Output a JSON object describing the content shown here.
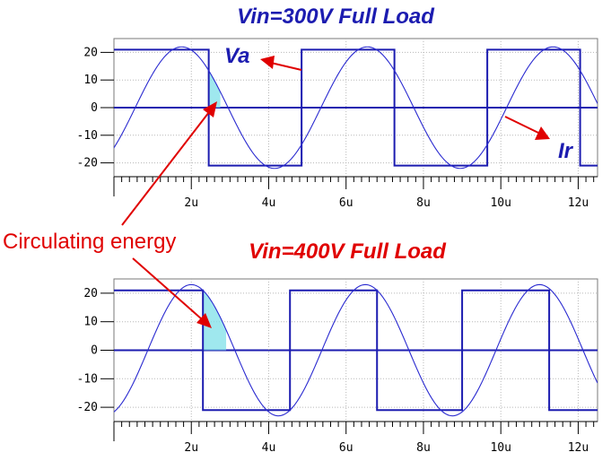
{
  "annotations": {
    "va_label": "Va",
    "ir_label": "Ir",
    "circulating_label": "Circulating energy"
  },
  "colors": {
    "waveform": "#1c1cb0",
    "sine": "#2a2ad0",
    "annotation": "#e00000",
    "shade": "#7fe0e8"
  },
  "chart_data": [
    {
      "type": "line",
      "title": "Vin=300V Full Load",
      "xlabel": "",
      "ylabel": "",
      "x_unit": "u",
      "xlim": [
        0,
        12.5
      ],
      "ylim": [
        -25,
        25
      ],
      "x_ticks": [
        2,
        4,
        6,
        8,
        10,
        12
      ],
      "x_tick_labels": [
        "2u",
        "4u",
        "6u",
        "8u",
        "10u",
        "12u"
      ],
      "y_ticks": [
        20,
        10,
        0,
        -10,
        -20
      ],
      "y_tick_labels": [
        "20",
        "10",
        "0",
        "-10",
        "-20"
      ],
      "grid": true,
      "series": [
        {
          "name": "Va",
          "shape": "square",
          "x": [
            -0.2,
            2.45,
            2.45,
            4.85,
            4.85,
            7.25,
            7.25,
            9.65,
            9.65,
            12.05,
            12.05,
            12.5
          ],
          "y": [
            21,
            21,
            -21,
            -21,
            21,
            21,
            -21,
            -21,
            21,
            21,
            -21,
            -21
          ]
        },
        {
          "name": "Ir",
          "shape": "sine",
          "amplitude": 22,
          "period": 4.8,
          "peak_x": 1.75,
          "x_start": -0.2,
          "x_end": 12.5
        }
      ],
      "shaded_region": {
        "x_start": 2.45,
        "x_end": 2.75
      }
    },
    {
      "type": "line",
      "title": "Vin=400V Full Load",
      "xlabel": "",
      "ylabel": "",
      "x_unit": "u",
      "xlim": [
        0,
        12.5
      ],
      "ylim": [
        -25,
        25
      ],
      "x_ticks": [
        2,
        4,
        6,
        8,
        10,
        12
      ],
      "x_tick_labels": [
        "2u",
        "4u",
        "6u",
        "8u",
        "10u",
        "12u"
      ],
      "y_ticks": [
        20,
        10,
        0,
        -10,
        -20
      ],
      "y_tick_labels": [
        "20",
        "10",
        "0",
        "-10",
        "-20"
      ],
      "grid": true,
      "series": [
        {
          "name": "Va",
          "shape": "square",
          "x": [
            -0.2,
            2.3,
            2.3,
            4.55,
            4.55,
            6.8,
            6.8,
            9.0,
            9.0,
            11.25,
            11.25,
            12.5
          ],
          "y": [
            21,
            21,
            -21,
            -21,
            21,
            21,
            -21,
            -21,
            21,
            21,
            -21,
            -21
          ]
        },
        {
          "name": "Ir",
          "shape": "sine",
          "amplitude": 23,
          "period": 4.5,
          "peak_x": 2.0,
          "x_start": -0.2,
          "x_end": 12.5
        }
      ],
      "shaded_region": {
        "x_start": 2.3,
        "x_end": 2.9
      }
    }
  ]
}
